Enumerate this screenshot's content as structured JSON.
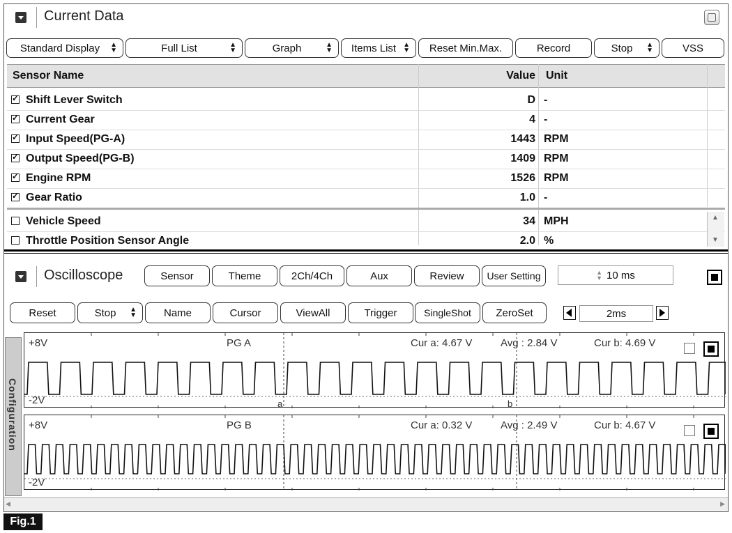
{
  "current_data": {
    "title": "Current Data",
    "toolbar": {
      "standard_display": "Standard Display",
      "full_list": "Full List",
      "graph": "Graph",
      "items_list": "Items List",
      "reset_minmax": "Reset Min.Max.",
      "record": "Record",
      "stop": "Stop",
      "vss": "VSS"
    },
    "columns": {
      "sensor": "Sensor Name",
      "value": "Value",
      "unit": "Unit"
    },
    "rows": [
      {
        "name": "Shift Lever Switch",
        "value": "D",
        "unit": "-",
        "checked": true
      },
      {
        "name": "Current Gear",
        "value": "4",
        "unit": "-",
        "checked": true
      },
      {
        "name": "Input Speed(PG-A)",
        "value": "1443",
        "unit": "RPM",
        "checked": true
      },
      {
        "name": "Output Speed(PG-B)",
        "value": "1409",
        "unit": "RPM",
        "checked": true
      },
      {
        "name": "Engine RPM",
        "value": "1526",
        "unit": "RPM",
        "checked": true
      },
      {
        "name": "Gear Ratio",
        "value": "1.0",
        "unit": "-",
        "checked": true
      },
      {
        "name": "Vehicle Speed",
        "value": "34",
        "unit": "MPH",
        "checked": false
      },
      {
        "name": "Throttle Position Sensor Angle",
        "value": "2.0",
        "unit": "%",
        "checked": false
      }
    ]
  },
  "oscilloscope": {
    "title": "Oscilloscope",
    "top_buttons": {
      "sensor": "Sensor",
      "theme": "Theme",
      "ch": "2Ch/4Ch",
      "aux": "Aux",
      "review": "Review",
      "user_setting": "User Setting"
    },
    "sample_time": "10 ms",
    "controls": {
      "reset": "Reset",
      "stop": "Stop",
      "name": "Name",
      "cursor": "Cursor",
      "viewall": "ViewAll",
      "trigger": "Trigger",
      "singleshot": "SingleShot",
      "zeroset": "ZeroSet",
      "timebase": "2ms"
    },
    "config_tab": "Configuration",
    "channels": [
      {
        "name": "PG A",
        "top": "+8V",
        "bottom": "-2V",
        "cur_a": "Cur a: 4.67 V",
        "avg": "Avg  : 2.84 V",
        "cur_b": "Cur b: 4.69 V",
        "cursor_a": "a",
        "cursor_b": "b"
      },
      {
        "name": "PG B",
        "top": "+8V",
        "bottom": "-2V",
        "cur_a": "Cur a: 0.32 V",
        "avg": "Avg  : 2.49 V",
        "cur_b": "Cur b: 4.67 V"
      }
    ]
  },
  "figure_label": "Fig.1"
}
